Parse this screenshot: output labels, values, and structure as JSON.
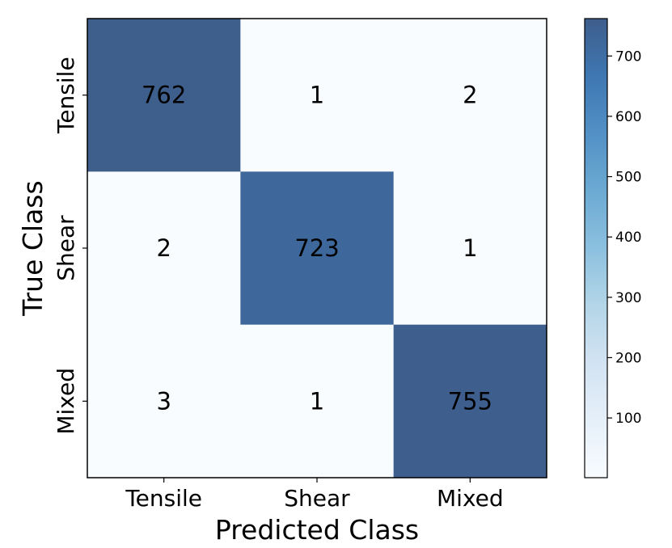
{
  "chart_data": {
    "type": "heatmap",
    "title": "",
    "xlabel": "Predicted Class",
    "ylabel": "True Class",
    "x_categories": [
      "Tensile",
      "Shear",
      "Mixed"
    ],
    "y_categories": [
      "Tensile",
      "Shear",
      "Mixed"
    ],
    "matrix": [
      [
        762,
        1,
        2
      ],
      [
        2,
        723,
        1
      ],
      [
        3,
        1,
        755
      ]
    ],
    "colormap": "Blues",
    "value_range": [
      1,
      762
    ],
    "colorbar_ticks": [
      100,
      200,
      300,
      400,
      500,
      600,
      700
    ],
    "grid": false,
    "legend": "colorbar-right"
  }
}
